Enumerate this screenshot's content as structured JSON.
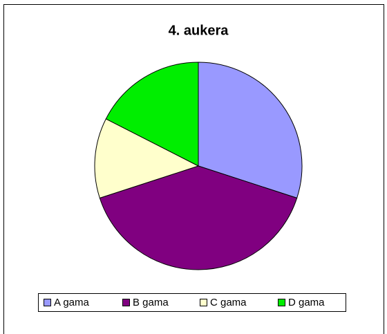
{
  "chart_data": {
    "type": "pie",
    "title": "4. aukera",
    "categories": [
      "A gama",
      "B gama",
      "C gama",
      "D gama"
    ],
    "values": [
      30,
      40,
      12.5,
      17.5
    ],
    "colors": [
      "#9999ff",
      "#800080",
      "#ffffcc",
      "#00ee00"
    ],
    "legend": "bottom"
  }
}
